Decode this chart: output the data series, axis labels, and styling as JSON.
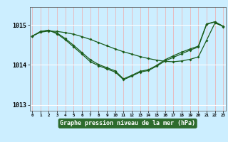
{
  "hours": [
    0,
    1,
    2,
    3,
    4,
    5,
    6,
    7,
    8,
    9,
    10,
    11,
    12,
    13,
    14,
    15,
    16,
    17,
    18,
    19,
    20,
    21,
    22,
    23
  ],
  "y_flat": [
    1014.72,
    1014.82,
    1014.85,
    1014.84,
    1014.81,
    1014.77,
    1014.71,
    1014.64,
    1014.56,
    1014.48,
    1014.4,
    1014.33,
    1014.27,
    1014.21,
    1014.16,
    1014.12,
    1014.09,
    1014.08,
    1014.1,
    1014.14,
    1014.2,
    1014.62,
    1015.05,
    1014.97
  ],
  "y_dip1": [
    1014.72,
    1014.83,
    1014.87,
    1014.78,
    1014.63,
    1014.45,
    1014.27,
    1014.08,
    1013.98,
    1013.9,
    1013.82,
    1013.63,
    1013.72,
    1013.82,
    1013.86,
    1013.97,
    1014.1,
    1014.19,
    1014.28,
    1014.37,
    1014.45,
    1015.02,
    1015.08,
    1014.96
  ],
  "y_dip2": [
    1014.72,
    1014.84,
    1014.87,
    1014.8,
    1014.66,
    1014.49,
    1014.31,
    1014.13,
    1014.01,
    1013.93,
    1013.85,
    1013.65,
    1013.74,
    1013.84,
    1013.88,
    1013.99,
    1014.13,
    1014.23,
    1014.32,
    1014.4,
    1014.47,
    1015.03,
    1015.08,
    1014.97
  ],
  "ylim": [
    1012.85,
    1015.45
  ],
  "yticks": [
    1013,
    1014,
    1015
  ],
  "xlabel": "Graphe pression niveau de la mer (hPa)",
  "line_color": "#1a5c1a",
  "bg_color": "#cceeff",
  "xlabel_bg": "#2d6b2d",
  "xlabel_fg": "#ffffff",
  "grid_color_v": "#f0aaaa",
  "grid_color_h": "#ffffff",
  "marker": "D",
  "marker_size": 2.0,
  "line_width": 0.9
}
